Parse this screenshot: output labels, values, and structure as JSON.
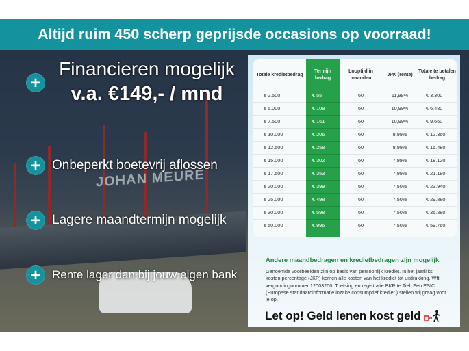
{
  "banner": {
    "text": "Altijd ruim 450 scherp geprijsde occasions op voorraad!"
  },
  "headline": {
    "line1": "Financieren mogelijk",
    "line2": "v.a. €149,- / mnd"
  },
  "features": [
    "Onbeperkt boetevrij aflossen",
    "Lagere maandtermijn mogelijk",
    "Rente lager dan bij jouw eigen bank"
  ],
  "photo_sign": "JOHAN MEURE",
  "table": {
    "headers": [
      "Totale kredietbedrag",
      "Termijn bedrag",
      "Looptijd in maanden",
      "JPK (rente)",
      "Totale te betalen bedrag"
    ],
    "rows": [
      [
        "€ 2.500",
        "€ 55",
        "60",
        "11,99%",
        "€ 3.300"
      ],
      [
        "€ 5.000",
        "€ 108",
        "60",
        "10,99%",
        "€ 6.480"
      ],
      [
        "€ 7.500",
        "€ 161",
        "60",
        "10,99%",
        "€ 9.660"
      ],
      [
        "€ 10.000",
        "€ 206",
        "60",
        "8,99%",
        "€ 12.360"
      ],
      [
        "€ 12.500",
        "€ 258",
        "60",
        "8,99%",
        "€ 15.480"
      ],
      [
        "€ 15.000",
        "€ 302",
        "60",
        "7,99%",
        "€ 18.120"
      ],
      [
        "€ 17.500",
        "€ 353",
        "60",
        "7,99%",
        "€ 21.180"
      ],
      [
        "€ 20.000",
        "€ 399",
        "60",
        "7,50%",
        "€ 23.940"
      ],
      [
        "€ 25.000",
        "€ 498",
        "60",
        "7,50%",
        "€ 29.880"
      ],
      [
        "€ 30.000",
        "€ 598",
        "60",
        "7,50%",
        "€ 35.880"
      ],
      [
        "€ 50.000",
        "€ 996",
        "60",
        "7,50%",
        "€ 59.760"
      ]
    ]
  },
  "note": {
    "title": "Andere maandbedragen en kredietbedragen zijn mogelijk.",
    "body": "Genoemde voorbeelden zijn op basis van persoonlijk krediet. In het jaarlijks kosten percentage (JKP) komen alle kosten van het krediet tot uitdrukking. Wft-vergunningnummer 12003200. Toetsing en registratie BKR te Tiel. Een ESIC (Europese standaardinformatie inzake consumptief krediet ) stellen wij graag voor je op."
  },
  "warning": "Let op! Geld lenen kost geld",
  "colors": {
    "teal": "#14939e",
    "green": "#27a04a",
    "note_green": "#1f8a3a"
  }
}
